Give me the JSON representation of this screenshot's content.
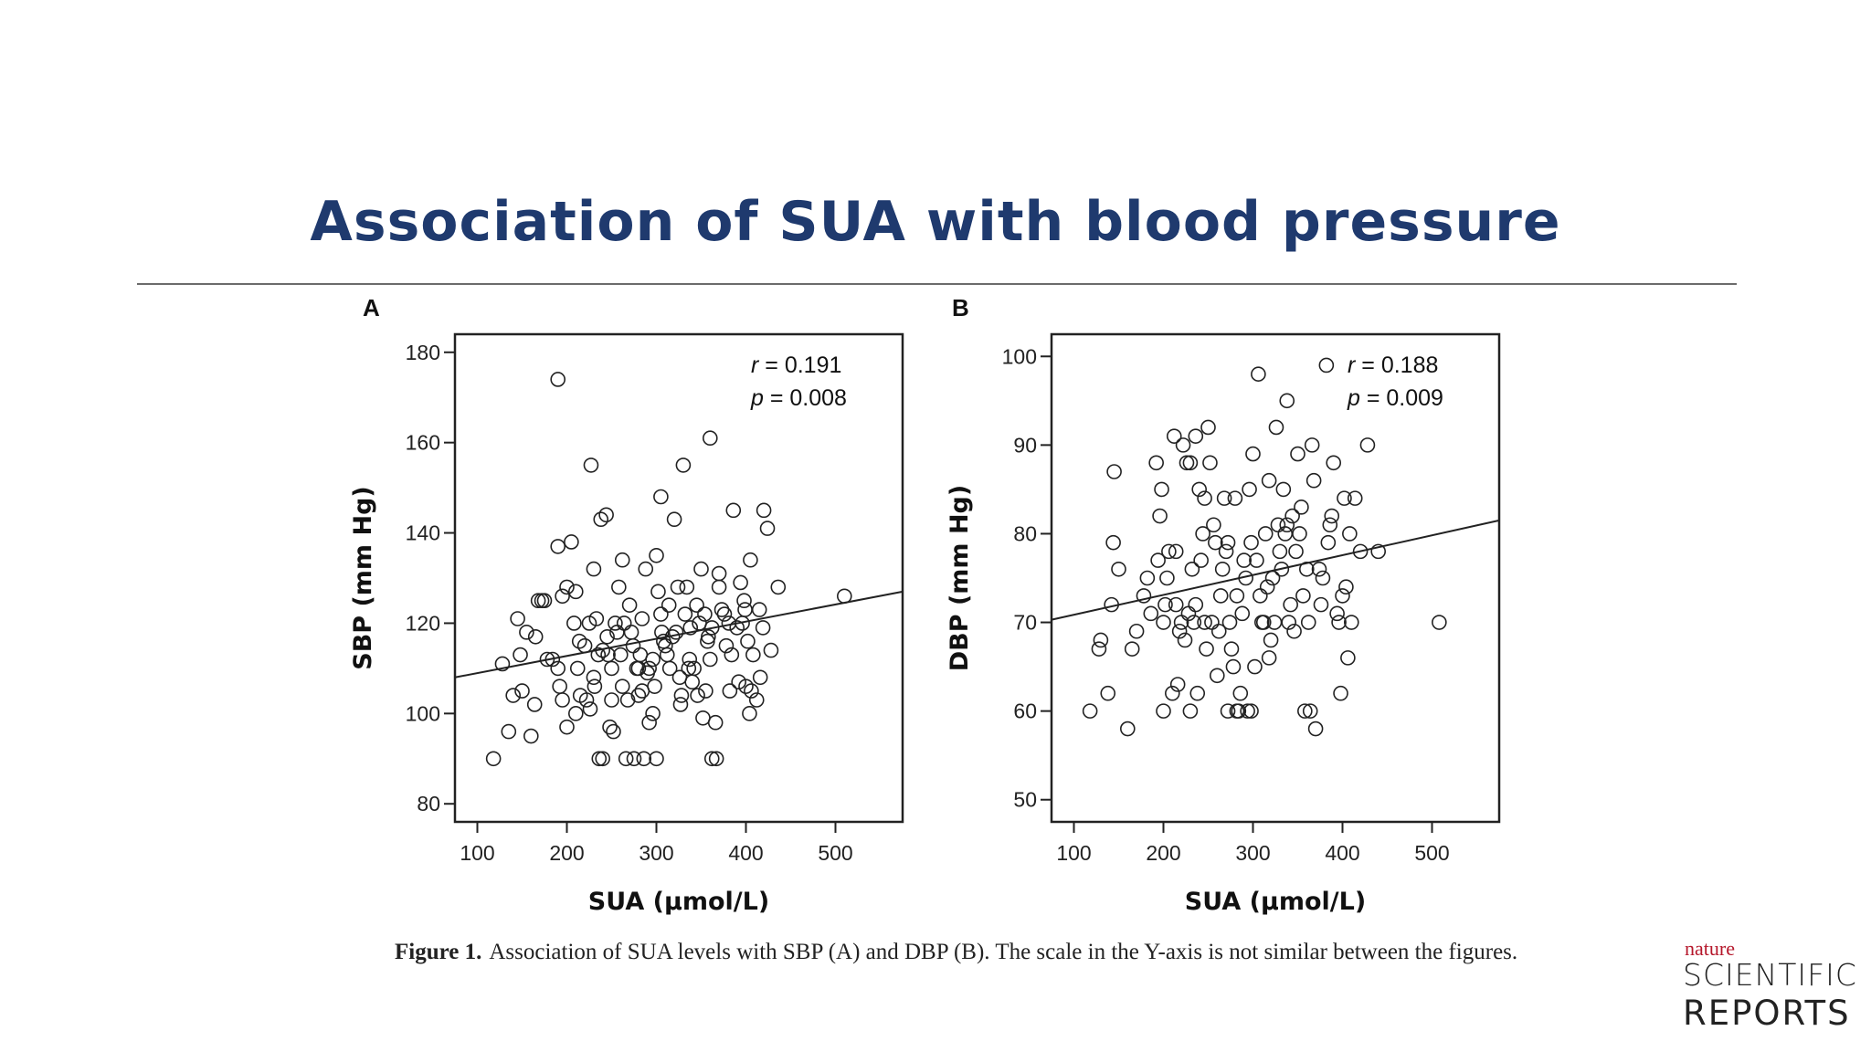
{
  "slide": {
    "title": "Association of SUA with blood pressure"
  },
  "caption": {
    "label": "Figure 1.",
    "text": "Association of SUA levels with SBP (A) and DBP (B). The scale in the Y-axis is not similar between the figures."
  },
  "logo": {
    "line1": "nature",
    "line2": "SCIENTIFIC",
    "line3": "REPORTS",
    "accent_color": "#b5172b"
  },
  "chart_data": [
    {
      "type": "scatter",
      "panel_label": "A",
      "xlabel": "SUA (μmol/L)",
      "ylabel": "SBP (mm Hg)",
      "xlim": [
        75,
        575
      ],
      "ylim": [
        76,
        184
      ],
      "xticks": [
        100,
        200,
        300,
        400,
        500
      ],
      "yticks": [
        80,
        100,
        120,
        140,
        160,
        180
      ],
      "annotation": {
        "r_label": "r",
        "r_value": "= 0.191",
        "p_label": "p",
        "p_value": "= 0.008"
      },
      "fit_line": {
        "x": [
          75,
          575
        ],
        "y": [
          108,
          127
        ]
      },
      "points": [
        [
          118,
          90
        ],
        [
          135,
          96
        ],
        [
          160,
          95
        ],
        [
          140,
          104
        ],
        [
          150,
          105
        ],
        [
          148,
          113
        ],
        [
          155,
          118
        ],
        [
          165,
          117
        ],
        [
          175,
          125
        ],
        [
          178,
          112
        ],
        [
          190,
          110
        ],
        [
          192,
          106
        ],
        [
          195,
          103
        ],
        [
          190,
          137
        ],
        [
          195,
          126
        ],
        [
          200,
          128
        ],
        [
          205,
          138
        ],
        [
          210,
          100
        ],
        [
          215,
          104
        ],
        [
          220,
          115
        ],
        [
          225,
          120
        ],
        [
          230,
          108
        ],
        [
          233,
          121
        ],
        [
          236,
          90
        ],
        [
          240,
          114
        ],
        [
          245,
          117
        ],
        [
          250,
          103
        ],
        [
          252,
          96
        ],
        [
          256,
          118
        ],
        [
          260,
          113
        ],
        [
          262,
          106
        ],
        [
          266,
          90
        ],
        [
          270,
          124
        ],
        [
          274,
          115
        ],
        [
          280,
          110
        ],
        [
          284,
          105
        ],
        [
          288,
          132
        ],
        [
          292,
          98
        ],
        [
          296,
          112
        ],
        [
          300,
          135
        ],
        [
          302,
          127
        ],
        [
          305,
          122
        ],
        [
          310,
          115
        ],
        [
          315,
          110
        ],
        [
          320,
          143
        ],
        [
          322,
          118
        ],
        [
          327,
          102
        ],
        [
          330,
          155
        ],
        [
          334,
          128
        ],
        [
          338,
          119
        ],
        [
          342,
          110
        ],
        [
          346,
          104
        ],
        [
          350,
          132
        ],
        [
          354,
          122
        ],
        [
          357,
          116
        ],
        [
          360,
          161
        ],
        [
          362,
          90
        ],
        [
          366,
          98
        ],
        [
          370,
          128
        ],
        [
          373,
          123
        ],
        [
          378,
          115
        ],
        [
          382,
          105
        ],
        [
          386,
          145
        ],
        [
          390,
          119
        ],
        [
          394,
          129
        ],
        [
          398,
          125
        ],
        [
          402,
          116
        ],
        [
          405,
          134
        ],
        [
          408,
          113
        ],
        [
          412,
          103
        ],
        [
          416,
          108
        ],
        [
          420,
          145
        ],
        [
          424,
          141
        ],
        [
          428,
          114
        ],
        [
          436,
          128
        ],
        [
          510,
          126
        ],
        [
          190,
          174
        ],
        [
          227,
          155
        ],
        [
          230,
          132
        ],
        [
          214,
          116
        ],
        [
          208,
          120
        ],
        [
          200,
          97
        ],
        [
          210,
          127
        ],
        [
          238,
          143
        ],
        [
          244,
          144
        ],
        [
          262,
          134
        ],
        [
          282,
          113
        ],
        [
          292,
          110
        ],
        [
          298,
          106
        ],
        [
          305,
          148
        ],
        [
          318,
          117
        ],
        [
          324,
          128
        ],
        [
          332,
          122
        ],
        [
          337,
          112
        ],
        [
          345,
          124
        ],
        [
          355,
          105
        ],
        [
          362,
          119
        ],
        [
          370,
          131
        ],
        [
          384,
          113
        ],
        [
          396,
          120
        ],
        [
          400,
          106
        ],
        [
          404,
          100
        ],
        [
          415,
          123
        ],
        [
          250,
          110
        ],
        [
          264,
          120
        ],
        [
          275,
          90
        ],
        [
          286,
          90
        ],
        [
          296,
          100
        ],
        [
          300,
          90
        ],
        [
          240,
          90
        ],
        [
          222,
          103
        ],
        [
          226,
          101
        ],
        [
          258,
          128
        ],
        [
          268,
          103
        ],
        [
          278,
          110
        ],
        [
          290,
          109
        ],
        [
          314,
          124
        ],
        [
          326,
          108
        ],
        [
          348,
          120
        ],
        [
          352,
          99
        ],
        [
          367,
          90
        ],
        [
          376,
          122
        ],
        [
          392,
          107
        ],
        [
          184,
          112
        ],
        [
          172,
          125
        ],
        [
          164,
          102
        ],
        [
          128,
          111
        ],
        [
          145,
          121
        ],
        [
          168,
          125
        ],
        [
          212,
          110
        ],
        [
          235,
          113
        ],
        [
          248,
          97
        ],
        [
          254,
          120
        ],
        [
          272,
          118
        ],
        [
          280,
          104
        ],
        [
          306,
          118
        ],
        [
          312,
          113
        ],
        [
          336,
          110
        ],
        [
          340,
          107
        ],
        [
          358,
          117
        ],
        [
          381,
          120
        ],
        [
          399,
          123
        ],
        [
          406,
          105
        ],
        [
          419,
          119
        ],
        [
          231,
          106
        ],
        [
          246,
          113
        ],
        [
          284,
          121
        ],
        [
          308,
          116
        ],
        [
          328,
          104
        ],
        [
          360,
          112
        ]
      ]
    },
    {
      "type": "scatter",
      "panel_label": "B",
      "xlabel": "SUA (μmol/L)",
      "ylabel": "DBP (mm Hg)",
      "xlim": [
        75,
        575
      ],
      "ylim": [
        47.5,
        102.5
      ],
      "xticks": [
        100,
        200,
        300,
        400,
        500
      ],
      "yticks": [
        50,
        60,
        70,
        80,
        90,
        100
      ],
      "annotation": {
        "r_label": "r",
        "r_value": "= 0.188",
        "p_label": "p",
        "p_value": "= 0.009"
      },
      "fit_line": {
        "x": [
          75,
          575
        ],
        "y": [
          70.3,
          81.5
        ]
      },
      "points": [
        [
          118,
          60
        ],
        [
          128,
          67
        ],
        [
          130,
          68
        ],
        [
          138,
          62
        ],
        [
          142,
          72
        ],
        [
          144,
          79
        ],
        [
          145,
          87
        ],
        [
          150,
          76
        ],
        [
          160,
          58
        ],
        [
          165,
          67
        ],
        [
          170,
          69
        ],
        [
          178,
          73
        ],
        [
          182,
          75
        ],
        [
          186,
          71
        ],
        [
          192,
          88
        ],
        [
          194,
          77
        ],
        [
          196,
          82
        ],
        [
          198,
          85
        ],
        [
          200,
          60
        ],
        [
          202,
          72
        ],
        [
          206,
          78
        ],
        [
          210,
          62
        ],
        [
          212,
          91
        ],
        [
          216,
          63
        ],
        [
          220,
          70
        ],
        [
          222,
          90
        ],
        [
          226,
          88
        ],
        [
          230,
          60
        ],
        [
          232,
          76
        ],
        [
          236,
          72
        ],
        [
          240,
          85
        ],
        [
          244,
          80
        ],
        [
          248,
          67
        ],
        [
          250,
          92
        ],
        [
          252,
          88
        ],
        [
          256,
          81
        ],
        [
          260,
          64
        ],
        [
          264,
          73
        ],
        [
          268,
          84
        ],
        [
          272,
          60
        ],
        [
          274,
          70
        ],
        [
          278,
          65
        ],
        [
          282,
          73
        ],
        [
          286,
          62
        ],
        [
          290,
          77
        ],
        [
          294,
          60
        ],
        [
          296,
          85
        ],
        [
          300,
          89
        ],
        [
          302,
          65
        ],
        [
          306,
          98
        ],
        [
          310,
          70
        ],
        [
          314,
          80
        ],
        [
          318,
          86
        ],
        [
          322,
          75
        ],
        [
          326,
          92
        ],
        [
          330,
          78
        ],
        [
          334,
          85
        ],
        [
          338,
          95
        ],
        [
          342,
          72
        ],
        [
          346,
          69
        ],
        [
          350,
          89
        ],
        [
          354,
          83
        ],
        [
          358,
          60
        ],
        [
          362,
          70
        ],
        [
          366,
          90
        ],
        [
          370,
          58
        ],
        [
          374,
          76
        ],
        [
          378,
          75
        ],
        [
          382,
          99
        ],
        [
          386,
          81
        ],
        [
          390,
          88
        ],
        [
          394,
          71
        ],
        [
          398,
          62
        ],
        [
          402,
          84
        ],
        [
          406,
          66
        ],
        [
          410,
          70
        ],
        [
          414,
          84
        ],
        [
          420,
          78
        ],
        [
          428,
          90
        ],
        [
          440,
          78
        ],
        [
          508,
          70
        ],
        [
          200,
          70
        ],
        [
          204,
          75
        ],
        [
          214,
          78
        ],
        [
          218,
          69
        ],
        [
          224,
          68
        ],
        [
          228,
          71
        ],
        [
          234,
          70
        ],
        [
          238,
          62
        ],
        [
          242,
          77
        ],
        [
          246,
          70
        ],
        [
          254,
          70
        ],
        [
          258,
          79
        ],
        [
          262,
          69
        ],
        [
          266,
          76
        ],
        [
          270,
          78
        ],
        [
          276,
          67
        ],
        [
          280,
          84
        ],
        [
          284,
          60
        ],
        [
          288,
          71
        ],
        [
          292,
          75
        ],
        [
          298,
          60
        ],
        [
          304,
          77
        ],
        [
          308,
          73
        ],
        [
          312,
          70
        ],
        [
          316,
          74
        ],
        [
          320,
          68
        ],
        [
          324,
          70
        ],
        [
          328,
          81
        ],
        [
          332,
          76
        ],
        [
          336,
          80
        ],
        [
          340,
          70
        ],
        [
          344,
          82
        ],
        [
          348,
          78
        ],
        [
          352,
          80
        ],
        [
          356,
          73
        ],
        [
          360,
          76
        ],
        [
          364,
          60
        ],
        [
          368,
          86
        ],
        [
          376,
          72
        ],
        [
          384,
          79
        ],
        [
          388,
          82
        ],
        [
          396,
          70
        ],
        [
          400,
          73
        ],
        [
          404,
          74
        ],
        [
          408,
          80
        ],
        [
          236,
          91
        ],
        [
          246,
          84
        ],
        [
          272,
          79
        ],
        [
          298,
          79
        ],
        [
          318,
          66
        ],
        [
          338,
          81
        ],
        [
          230,
          88
        ],
        [
          214,
          72
        ],
        [
          282,
          60
        ]
      ]
    }
  ]
}
